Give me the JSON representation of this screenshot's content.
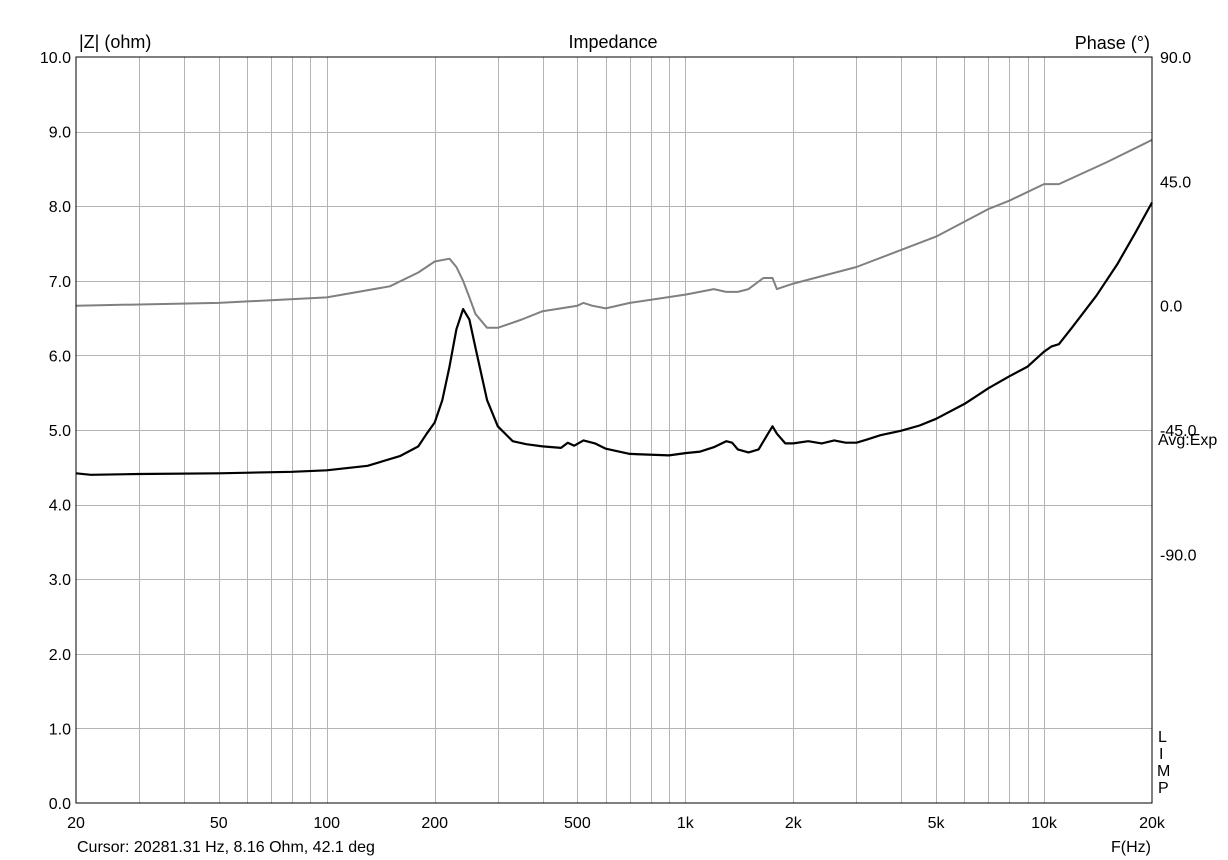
{
  "chart_data": {
    "type": "line",
    "title": "Impedance",
    "ylabel_left": "|Z| (ohm)",
    "ylabel_right": "Phase (°)",
    "xlabel": "F(Hz)",
    "x_scale": "log",
    "xlim": [
      20,
      20000
    ],
    "ylim_left": [
      0,
      10
    ],
    "ylim_right": [
      -180,
      90
    ],
    "x_ticks": [
      {
        "value": 20,
        "label": "20"
      },
      {
        "value": 50,
        "label": "50"
      },
      {
        "value": 100,
        "label": "100"
      },
      {
        "value": 200,
        "label": "200"
      },
      {
        "value": 500,
        "label": "500"
      },
      {
        "value": 1000,
        "label": "1k"
      },
      {
        "value": 2000,
        "label": "2k"
      },
      {
        "value": 5000,
        "label": "5k"
      },
      {
        "value": 10000,
        "label": "10k"
      },
      {
        "value": 20000,
        "label": "20k"
      }
    ],
    "y_ticks_left": [
      "0.0",
      "1.0",
      "2.0",
      "3.0",
      "4.0",
      "5.0",
      "6.0",
      "7.0",
      "8.0",
      "9.0",
      "10.0"
    ],
    "y_ticks_right": [
      {
        "value": 90,
        "label": "90.0"
      },
      {
        "value": 45,
        "label": "45.0"
      },
      {
        "value": 0,
        "label": "0.0"
      },
      {
        "value": -45,
        "label": "-45.0"
      },
      {
        "value": -90,
        "label": "-90.0"
      }
    ],
    "grid": true,
    "colors": {
      "impedance": "#000000",
      "phase": "#808080",
      "grid": "#b4b4b4"
    },
    "series": [
      {
        "axis": "left",
        "color": "#000000",
        "x": [
          20,
          22,
          30,
          50,
          80,
          100,
          130,
          160,
          180,
          190,
          200,
          210,
          220,
          230,
          240,
          250,
          260,
          280,
          300,
          330,
          360,
          400,
          450,
          470,
          490,
          520,
          560,
          600,
          700,
          900,
          1000,
          1100,
          1200,
          1300,
          1350,
          1400,
          1500,
          1600,
          1700,
          1750,
          1800,
          1900,
          2000,
          2200,
          2400,
          2600,
          2800,
          3000,
          3200,
          3500,
          4000,
          4500,
          5000,
          6000,
          7000,
          8000,
          9000,
          10000,
          10500,
          11000,
          12000,
          14000,
          16000,
          18000,
          20000
        ],
        "y": [
          4.42,
          4.4,
          4.41,
          4.42,
          4.44,
          4.46,
          4.52,
          4.65,
          4.78,
          4.95,
          5.1,
          5.4,
          5.85,
          6.35,
          6.62,
          6.48,
          6.1,
          5.4,
          5.05,
          4.85,
          4.81,
          4.78,
          4.76,
          4.83,
          4.79,
          4.86,
          4.82,
          4.75,
          4.68,
          4.66,
          4.69,
          4.71,
          4.77,
          4.85,
          4.83,
          4.74,
          4.7,
          4.74,
          4.95,
          5.05,
          4.95,
          4.82,
          4.82,
          4.85,
          4.82,
          4.86,
          4.83,
          4.83,
          4.87,
          4.93,
          4.99,
          5.06,
          5.15,
          5.35,
          5.56,
          5.72,
          5.85,
          6.05,
          6.12,
          6.15,
          6.38,
          6.8,
          7.22,
          7.65,
          8.05
        ]
      },
      {
        "axis": "right",
        "color": "#808080",
        "x": [
          20,
          50,
          100,
          150,
          180,
          200,
          220,
          230,
          240,
          250,
          260,
          280,
          300,
          350,
          400,
          500,
          520,
          550,
          600,
          700,
          1000,
          1200,
          1300,
          1400,
          1500,
          1650,
          1750,
          1800,
          2000,
          3000,
          5000,
          7000,
          8000,
          10000,
          11000,
          15000,
          20000
        ],
        "y": [
          0,
          1,
          3,
          7,
          12,
          16,
          17,
          14,
          9,
          3,
          -3,
          -8,
          -8,
          -5,
          -2,
          0,
          1,
          0,
          -1,
          1,
          4,
          6,
          5,
          5,
          6,
          10,
          10,
          6,
          8,
          14,
          25,
          35,
          38,
          44,
          44,
          52,
          60
        ]
      }
    ],
    "annotations": [
      "Avg:Exp",
      "L",
      "I",
      "M",
      "P"
    ]
  },
  "cursor_readout": "Cursor: 20281.31 Hz, 8.16 Ohm, 42.1 deg"
}
